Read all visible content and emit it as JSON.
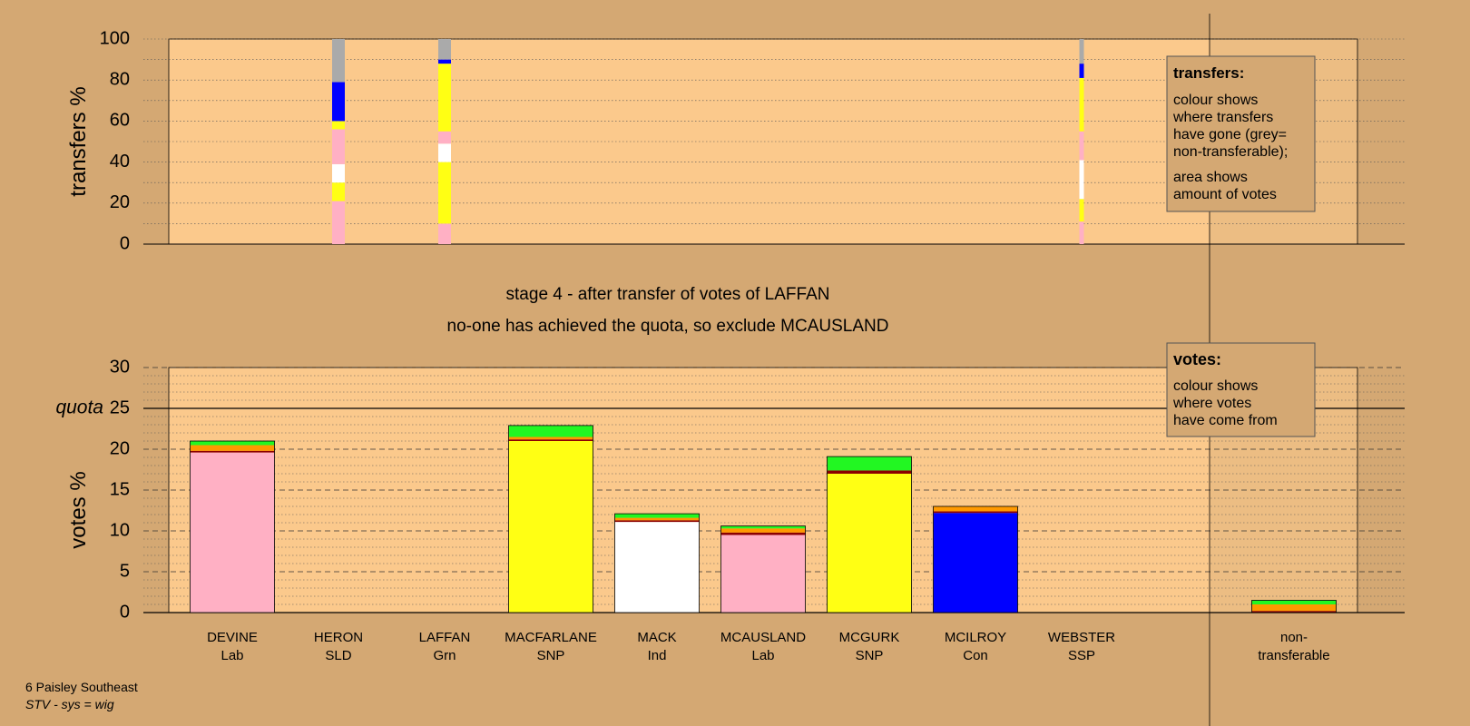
{
  "colors": {
    "background": "#d4a873",
    "plot_bg": "#fbc98c",
    "pink_lab": "#ffb0c4",
    "yellow_snp": "#ffff14",
    "white_ind": "#ffffff",
    "blue_con": "#0000ff",
    "green_grn": "#22f722",
    "orange_sld": "#ff9900",
    "darkred_ssp": "#8b0000",
    "grey_nontransferable": "#aaaaaa"
  },
  "stage_title": "stage 4 - after transfer of votes of LAFFAN",
  "stage_subtitle": "no-one has achieved the quota, so exclude MCAUSLAND",
  "footer": {
    "line1": "6 Paisley Southeast",
    "line2": "STV - sys = wig"
  },
  "transfers_legend": {
    "title": "transfers:",
    "lines": [
      "colour shows",
      "where transfers",
      "have gone (grey=",
      "non-transferable);",
      "area shows",
      "amount of votes"
    ]
  },
  "votes_legend": {
    "title": "votes:",
    "lines": [
      "colour shows",
      "where votes",
      "have come from"
    ]
  },
  "chart_data": [
    {
      "type": "bar",
      "name": "transfers",
      "ylabel": "transfers %",
      "ylim": [
        0,
        100
      ],
      "yticks": [
        0,
        20,
        40,
        60,
        80,
        100
      ],
      "grid": "dotted every 10",
      "categories": [
        "DEVINE Lab",
        "HERON SLD",
        "LAFFAN Grn",
        "MACFARLANE SNP",
        "MACK Ind",
        "MCAUSLAND Lab",
        "MCGURK SNP",
        "MCILROY Con",
        "WEBSTER SSP"
      ],
      "bars": [
        {
          "category": "HERON SLD",
          "segments": [
            {
              "color": "pink_lab",
              "from": 0,
              "to": 21
            },
            {
              "color": "yellow_snp",
              "from": 21,
              "to": 30
            },
            {
              "color": "white_ind",
              "from": 30,
              "to": 39
            },
            {
              "color": "pink_lab",
              "from": 39,
              "to": 56
            },
            {
              "color": "yellow_snp",
              "from": 56,
              "to": 60
            },
            {
              "color": "blue_con",
              "from": 60,
              "to": 79
            },
            {
              "color": "grey_nontransferable",
              "from": 79,
              "to": 100
            }
          ]
        },
        {
          "category": "LAFFAN Grn",
          "segments": [
            {
              "color": "pink_lab",
              "from": 0,
              "to": 10
            },
            {
              "color": "yellow_snp",
              "from": 10,
              "to": 40
            },
            {
              "color": "white_ind",
              "from": 40,
              "to": 49
            },
            {
              "color": "pink_lab",
              "from": 49,
              "to": 55
            },
            {
              "color": "yellow_snp",
              "from": 55,
              "to": 88
            },
            {
              "color": "blue_con",
              "from": 88,
              "to": 90
            },
            {
              "color": "grey_nontransferable",
              "from": 90,
              "to": 100
            }
          ]
        },
        {
          "category": "WEBSTER SSP",
          "segments": [
            {
              "color": "pink_lab",
              "from": 0,
              "to": 11
            },
            {
              "color": "yellow_snp",
              "from": 11,
              "to": 22
            },
            {
              "color": "white_ind",
              "from": 22,
              "to": 41
            },
            {
              "color": "pink_lab",
              "from": 41,
              "to": 55
            },
            {
              "color": "yellow_snp",
              "from": 55,
              "to": 81
            },
            {
              "color": "blue_con",
              "from": 81,
              "to": 88
            },
            {
              "color": "grey_nontransferable",
              "from": 88,
              "to": 100
            }
          ]
        }
      ]
    },
    {
      "type": "bar",
      "name": "votes",
      "ylabel": "votes %",
      "ylim": [
        0,
        30
      ],
      "yticks": [
        0,
        5,
        10,
        15,
        20,
        25,
        30
      ],
      "quota": 25,
      "quota_label": "quota",
      "grid": "dashed every 5, dotted every 1",
      "categories": [
        {
          "name": "DEVINE",
          "party": "Lab"
        },
        {
          "name": "HERON",
          "party": "SLD"
        },
        {
          "name": "LAFFAN",
          "party": "Grn"
        },
        {
          "name": "MACFARLANE",
          "party": "SNP"
        },
        {
          "name": "MACK",
          "party": "Ind"
        },
        {
          "name": "MCAUSLAND",
          "party": "Lab"
        },
        {
          "name": "MCGURK",
          "party": "SNP"
        },
        {
          "name": "MCILROY",
          "party": "Con"
        },
        {
          "name": "WEBSTER",
          "party": "SSP"
        }
      ],
      "nontransferable_label": [
        "non-",
        "transferable"
      ],
      "stacks": [
        {
          "category": "DEVINE",
          "segments": [
            {
              "color": "pink_lab",
              "value": 19.6
            },
            {
              "color": "darkred_ssp",
              "value": 0.2
            },
            {
              "color": "orange_sld",
              "value": 0.7
            },
            {
              "color": "green_grn",
              "value": 0.5
            }
          ]
        },
        {
          "category": "HERON",
          "segments": []
        },
        {
          "category": "LAFFAN",
          "segments": []
        },
        {
          "category": "MACFARLANE",
          "segments": [
            {
              "color": "yellow_snp",
              "value": 21.0
            },
            {
              "color": "darkred_ssp",
              "value": 0.2
            },
            {
              "color": "orange_sld",
              "value": 0.3
            },
            {
              "color": "green_grn",
              "value": 1.4
            }
          ]
        },
        {
          "category": "MACK",
          "segments": [
            {
              "color": "white_ind",
              "value": 11.1
            },
            {
              "color": "darkred_ssp",
              "value": 0.2
            },
            {
              "color": "orange_sld",
              "value": 0.3
            },
            {
              "color": "green_grn",
              "value": 0.5
            }
          ]
        },
        {
          "category": "MCAUSLAND",
          "segments": [
            {
              "color": "pink_lab",
              "value": 9.5
            },
            {
              "color": "darkred_ssp",
              "value": 0.3
            },
            {
              "color": "orange_sld",
              "value": 0.5
            },
            {
              "color": "green_grn",
              "value": 0.3
            }
          ]
        },
        {
          "category": "MCGURK",
          "segments": [
            {
              "color": "yellow_snp",
              "value": 17.0
            },
            {
              "color": "darkred_ssp",
              "value": 0.4
            },
            {
              "color": "green_grn",
              "value": 1.7
            }
          ]
        },
        {
          "category": "MCILROY",
          "segments": [
            {
              "color": "blue_con",
              "value": 12.2
            },
            {
              "color": "darkred_ssp",
              "value": 0.2
            },
            {
              "color": "orange_sld",
              "value": 0.6
            }
          ]
        },
        {
          "category": "WEBSTER",
          "segments": []
        },
        {
          "category": "non-transferable",
          "segments": [
            {
              "color": "darkred_ssp",
              "value": 0.2
            },
            {
              "color": "orange_sld",
              "value": 0.8
            },
            {
              "color": "green_grn",
              "value": 0.5
            }
          ]
        }
      ]
    }
  ]
}
